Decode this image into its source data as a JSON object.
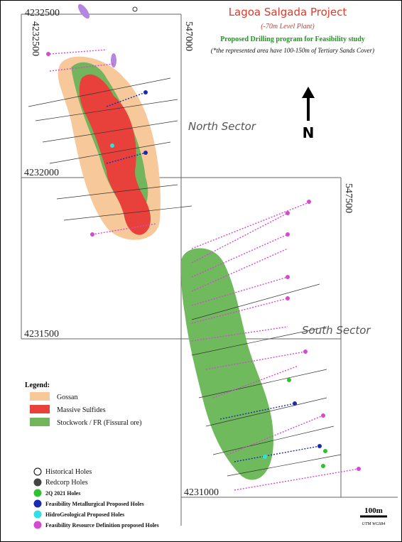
{
  "header": {
    "title": "Lagoa Salgada Project",
    "subtitle": "(-70m Level Plant)",
    "program": "Proposed Drilling program for Feasibility study",
    "note": "(*the represented area have 100-150m of Tertiary Sands Cover)"
  },
  "grid_labels": {
    "top_northing": "4232500",
    "left_northing": "4232500",
    "easting_1": "547000",
    "easting_2": "547500",
    "northing_2000": "4232000",
    "northing_1500": "4231500",
    "northing_1000": "4231000"
  },
  "sectors": {
    "north": "North Sector",
    "south": "South Sector"
  },
  "north_arrow": "N",
  "scale": {
    "bar": "100m",
    "datum": "UTM WGS84"
  },
  "legend": {
    "title": "Legend:",
    "zones": [
      "Gossan",
      "Massive Sulfides",
      "Stockwork / FR (Fissural ore)"
    ],
    "holes": [
      "Historical Holes",
      "Redcorp Holes",
      "2Q 2021 Holes",
      "Feasibility Metallurgical Proposed Holes",
      "HidroGeological Proposed Holes",
      "Feasibility Resource Definition proposed Holes"
    ]
  }
}
